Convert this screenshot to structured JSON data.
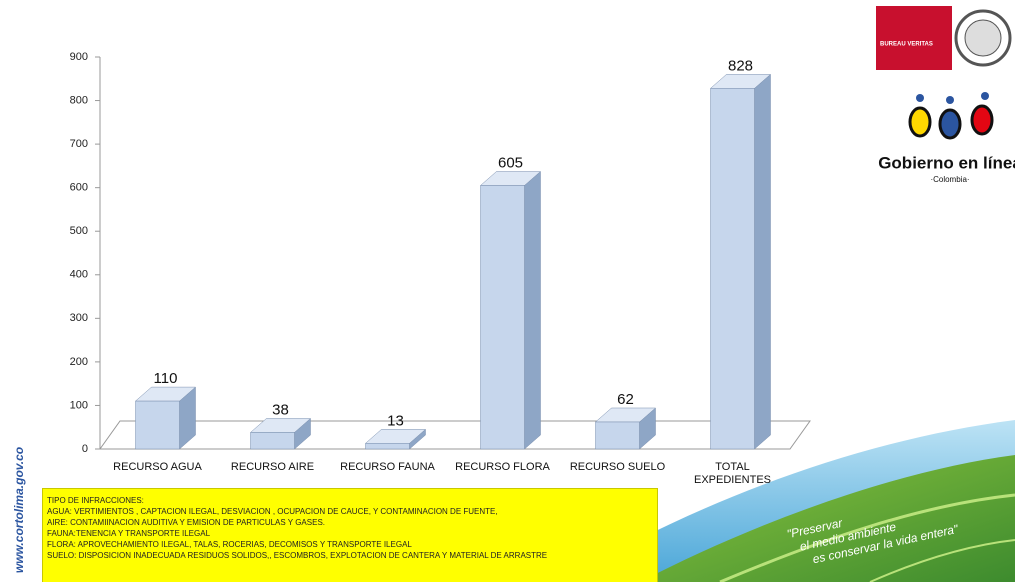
{
  "chart_data": {
    "type": "bar",
    "categories": [
      "RECURSO AGUA",
      "RECURSO AIRE",
      "RECURSO FAUNA",
      "RECURSO FLORA",
      "RECURSO SUELO",
      "TOTAL EXPEDIENTES"
    ],
    "values": [
      110,
      38,
      13,
      605,
      62,
      828
    ],
    "color": "#c6d6ec",
    "ylim": [
      0,
      900
    ],
    "yticks": [
      0,
      100,
      200,
      300,
      400,
      500,
      600,
      700,
      800,
      900
    ],
    "grid": false
  },
  "notes": [
    "TIPO DE INFRACCIONES:",
    "AGUA: VERTIMIENTOS , CAPTACION ILEGAL, DESVIACION , OCUPACION DE CAUCE, Y CONTAMINACION DE FUENTE,",
    "AIRE:  CONTAMIINACION AUDITIVA Y EMISION DE PARTICULAS Y GASES.",
    "FAUNA:TENENCIA Y TRANSPORTE ILEGAL",
    "FLORA: APROVECHAMIENTO ILEGAL, TALAS, ROCERIAS, DECOMISOS Y TRANSPORTE ILEGAL",
    "SUELO: DISPOSICION INADECUADA RESIDUOS SOLIDOS,, ESCOMBROS,  EXPLOTACION DE CANTERA Y MATERIAL DE ARRASTRE"
  ],
  "website": "www.cortolima.gov.co",
  "slogan": [
    "\"Preservar",
    "el medio ambiente",
    "es conservar la vida entera\""
  ],
  "logos": {
    "certification": "BUREAU VERITAS",
    "gobierno": "Gobierno en línea",
    "country": "·Colombia·"
  }
}
